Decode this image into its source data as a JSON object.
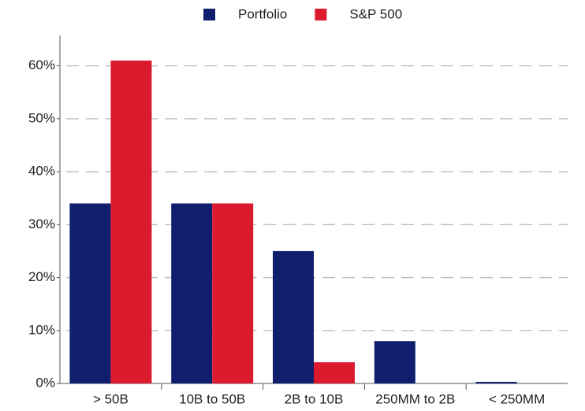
{
  "chart_data": {
    "type": "bar",
    "categories": [
      "> 50B",
      "10B to 50B",
      "2B to 10B",
      "250MM to 2B",
      "< 250MM"
    ],
    "series": [
      {
        "name": "Portfolio",
        "color": "#0f1f6e",
        "values": [
          34,
          34,
          25,
          8,
          0.3
        ]
      },
      {
        "name": "S&P 500",
        "color": "#dc1a2e",
        "values": [
          61,
          34,
          4,
          0,
          0
        ]
      }
    ],
    "ylim": [
      0,
      65
    ],
    "yticks": [
      {
        "value": 0,
        "label": "0%"
      },
      {
        "value": 10,
        "label": "10%"
      },
      {
        "value": 20,
        "label": "20%"
      },
      {
        "value": 30,
        "label": "30%"
      },
      {
        "value": 40,
        "label": "40%"
      },
      {
        "value": 50,
        "label": "50%"
      },
      {
        "value": 60,
        "label": "60%"
      }
    ],
    "grid": true,
    "legend": "top"
  }
}
